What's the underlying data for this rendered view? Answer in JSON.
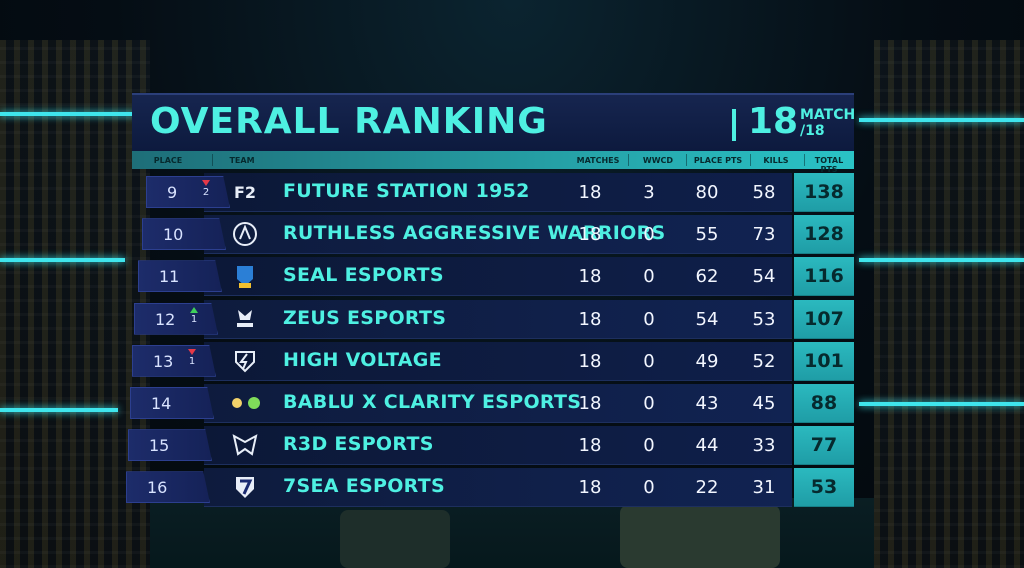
{
  "header": {
    "title": "OVERALL RANKING",
    "match_number": "18",
    "match_word": "MATCH",
    "match_total": "/18"
  },
  "columns": {
    "place": "PLACE",
    "team": "TEAM",
    "matches": "MATCHES",
    "wwcd": "WWCD",
    "place_pts": "PLACE PTS",
    "kills": "KILLS",
    "total_pts": "TOTAL PTS"
  },
  "rows": [
    {
      "place": "9",
      "delta_dir": "down",
      "delta": "2",
      "logo": "future-station-logo-icon",
      "team": "FUTURE STATION 1952",
      "matches": "18",
      "wwcd": "3",
      "place_pts": "80",
      "kills": "58",
      "total": "138"
    },
    {
      "place": "10",
      "delta_dir": "",
      "delta": "",
      "logo": "ruthless-aggressive-warriors-logo-icon",
      "team": "RUTHLESS AGGRESSIVE WARRIORS",
      "matches": "18",
      "wwcd": "0",
      "place_pts": "55",
      "kills": "73",
      "total": "128"
    },
    {
      "place": "11",
      "delta_dir": "",
      "delta": "",
      "logo": "seal-esports-logo-icon",
      "team": "SEAL ESPORTS",
      "matches": "18",
      "wwcd": "0",
      "place_pts": "62",
      "kills": "54",
      "total": "116"
    },
    {
      "place": "12",
      "delta_dir": "up",
      "delta": "1",
      "logo": "zeus-esports-logo-icon",
      "team": "ZEUS ESPORTS",
      "matches": "18",
      "wwcd": "0",
      "place_pts": "54",
      "kills": "53",
      "total": "107"
    },
    {
      "place": "13",
      "delta_dir": "down",
      "delta": "1",
      "logo": "high-voltage-logo-icon",
      "team": "HIGH VOLTAGE",
      "matches": "18",
      "wwcd": "0",
      "place_pts": "49",
      "kills": "52",
      "total": "101"
    },
    {
      "place": "14",
      "delta_dir": "",
      "delta": "",
      "logo": "bablu-x-clarity-logo-icon",
      "team": "BABLU X CLARITY ESPORTS",
      "matches": "18",
      "wwcd": "0",
      "place_pts": "43",
      "kills": "45",
      "total": "88"
    },
    {
      "place": "15",
      "delta_dir": "",
      "delta": "",
      "logo": "r3d-esports-logo-icon",
      "team": "R3D ESPORTS",
      "matches": "18",
      "wwcd": "0",
      "place_pts": "44",
      "kills": "33",
      "total": "77"
    },
    {
      "place": "16",
      "delta_dir": "",
      "delta": "",
      "logo": "7sea-esports-logo-icon",
      "team": "7SEA ESPORTS",
      "matches": "18",
      "wwcd": "0",
      "place_pts": "22",
      "kills": "31",
      "total": "53"
    }
  ],
  "colors": {
    "accent": "#4ef0e2",
    "header_bg": "#0d1a3e",
    "total_bg": "#2bb9bf",
    "rank_down": "#e53948",
    "rank_up": "#3fcf5a"
  }
}
